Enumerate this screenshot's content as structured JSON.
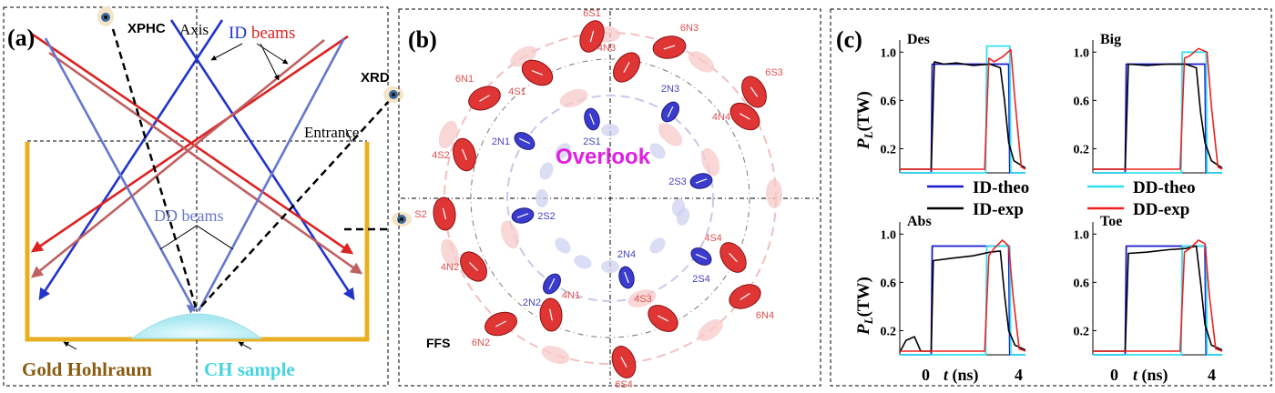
{
  "panel_a": {
    "label": "(a)",
    "xphc": "XPHC",
    "axis": "Axis",
    "id_prefix": "ID",
    "id_suffix": " beams",
    "xrd": "XRD",
    "entrance": "Entrance",
    "dd_beams": "DD beams",
    "gold": "Gold Hohlraum",
    "ch": "CH sample",
    "colors": {
      "id_blue": "#2233cc",
      "id_red": "#dd2222",
      "dd_blue": "#6677cc",
      "dd_red": "#c06060",
      "gold": "#e8b020",
      "ch": "#45d4e0",
      "gold_text": "#8a5a10"
    }
  },
  "panel_b": {
    "label": "(b)",
    "overlook": "Overlook",
    "ffs": "FFS",
    "beams": [
      {
        "id": "6S1",
        "color": "red",
        "label": "6S1"
      },
      {
        "id": "6N3",
        "color": "red",
        "label": "6N3"
      },
      {
        "id": "6S3",
        "color": "red",
        "label": "6S3"
      },
      {
        "id": "6N4",
        "color": "red",
        "label": "6N4"
      },
      {
        "id": "6S4",
        "color": "red",
        "label": "6S4"
      },
      {
        "id": "6N2",
        "color": "red",
        "label": "6N2"
      },
      {
        "id": "6S2",
        "color": "red",
        "label": "S2"
      },
      {
        "id": "6N1",
        "color": "red",
        "label": "6N1"
      },
      {
        "id": "4N3",
        "color": "red",
        "label": "4N3"
      },
      {
        "id": "4N4",
        "color": "red",
        "label": "4N4"
      },
      {
        "id": "4S4",
        "color": "red",
        "label": "4S4"
      },
      {
        "id": "4S3",
        "color": "red",
        "label": "4S3"
      },
      {
        "id": "4N1",
        "color": "red",
        "label": "4N1"
      },
      {
        "id": "4N2",
        "color": "red",
        "label": "4N2"
      },
      {
        "id": "4S2",
        "color": "red",
        "label": "4S2"
      },
      {
        "id": "4S1",
        "color": "red",
        "label": "4S1"
      },
      {
        "id": "2S1",
        "color": "blue",
        "label": "2S1"
      },
      {
        "id": "2N3",
        "color": "blue",
        "label": "2N3"
      },
      {
        "id": "2S3",
        "color": "blue",
        "label": "2S3"
      },
      {
        "id": "2S4",
        "color": "blue",
        "label": "2S4"
      },
      {
        "id": "2N4",
        "color": "blue",
        "label": "2N4"
      },
      {
        "id": "2N2",
        "color": "blue",
        "label": "2N2"
      },
      {
        "id": "2S2",
        "color": "blue",
        "label": "2S2"
      },
      {
        "id": "2N1",
        "color": "blue",
        "label": "2N1"
      }
    ],
    "colors": {
      "red": "#e03535",
      "blue": "#3b3bcc",
      "overlook": "#e020e0",
      "label_red": "#e05050",
      "label_blue": "#4545bb"
    }
  },
  "panel_c": {
    "label": "(c)",
    "ylabel_main": "P",
    "ylabel_sub": "L",
    "ylabel_unit": "(TW)",
    "xlabel_t": "t",
    "xlabel_unit": " (ns)",
    "xticks": [
      "0",
      "4"
    ],
    "yticks": [
      "0.2",
      "0.6",
      "1.0"
    ],
    "yticks_a": [
      "0.2",
      "0.6",
      "1.0"
    ],
    "yticks_b": [
      "0.2",
      "0.6",
      "1.0"
    ],
    "legend": {
      "id_theo": "ID-theo",
      "dd_theo": "DD-theo",
      "id_exp": "ID-exp",
      "dd_exp": "DD-exp"
    },
    "colors": {
      "id_theo": "#1a1acc",
      "dd_theo": "#33e0ee",
      "id_exp": "#000000",
      "dd_exp": "#ee2020"
    }
  },
  "chart_data": [
    {
      "type": "line",
      "title": "Des",
      "xlabel": "t (ns)",
      "ylabel": "PL(TW)",
      "ylim": [
        0,
        1.1
      ],
      "series": [
        {
          "name": "ID-theo",
          "x": [
            -1.5,
            0,
            0.05,
            3.7,
            3.75,
            4.5
          ],
          "values": [
            0,
            0,
            0.9,
            0.9,
            0,
            0
          ]
        },
        {
          "name": "DD-theo",
          "x": [
            -1.5,
            2.6,
            2.65,
            3.75,
            3.8,
            4.5
          ],
          "values": [
            0,
            0,
            1.05,
            1.05,
            0,
            0
          ]
        },
        {
          "name": "ID-exp",
          "x": [
            -1.5,
            0,
            0.15,
            0.6,
            1.2,
            2.0,
            2.8,
            3.3,
            3.5,
            3.7,
            3.95,
            4.5
          ],
          "values": [
            0.03,
            0.03,
            0.92,
            0.9,
            0.91,
            0.89,
            0.9,
            0.87,
            0.6,
            0.25,
            0.1,
            0.04
          ]
        },
        {
          "name": "DD-exp",
          "x": [
            -1.5,
            2.55,
            2.75,
            3.0,
            3.4,
            3.8,
            4.0,
            4.3,
            4.5
          ],
          "values": [
            0.03,
            0.03,
            0.95,
            0.92,
            0.96,
            1.02,
            0.6,
            0.05,
            0.03
          ]
        }
      ]
    },
    {
      "type": "line",
      "title": "Big",
      "xlabel": "t (ns)",
      "ylabel": "PL(TW)",
      "ylim": [
        0,
        1.1
      ],
      "series": [
        {
          "name": "ID-theo",
          "x": [
            -1.5,
            0,
            0.05,
            3.7,
            3.75,
            4.5
          ],
          "values": [
            0,
            0,
            0.9,
            0.9,
            0,
            0
          ]
        },
        {
          "name": "DD-theo",
          "x": [
            -1.5,
            2.6,
            2.65,
            3.75,
            3.8,
            4.5
          ],
          "values": [
            0,
            0,
            1.0,
            1.0,
            0,
            0
          ]
        },
        {
          "name": "ID-exp",
          "x": [
            -1.5,
            0,
            0.15,
            1.0,
            2.0,
            2.8,
            3.3,
            3.5,
            3.7,
            4.0,
            4.5
          ],
          "values": [
            0.03,
            0.03,
            0.9,
            0.89,
            0.9,
            0.9,
            0.87,
            0.5,
            0.25,
            0.1,
            0.04
          ]
        },
        {
          "name": "DD-exp",
          "x": [
            -1.5,
            2.55,
            2.75,
            3.0,
            3.4,
            3.8,
            4.0,
            4.3,
            4.5
          ],
          "values": [
            0.03,
            0.03,
            0.95,
            0.97,
            1.03,
            1.0,
            0.55,
            0.05,
            0.03
          ]
        }
      ]
    },
    {
      "type": "line",
      "title": "Abs",
      "xlabel": "t (ns)",
      "ylabel": "PL(TW)",
      "ylim": [
        0,
        1.1
      ],
      "series": [
        {
          "name": "ID-theo",
          "x": [
            -1.5,
            0,
            0.05,
            3.7,
            3.75,
            4.5
          ],
          "values": [
            0,
            0,
            0.9,
            0.9,
            0,
            0
          ]
        },
        {
          "name": "DD-theo",
          "x": [
            -1.5,
            2.6,
            2.65,
            3.75,
            3.8,
            4.5
          ],
          "values": [
            0,
            0,
            0.9,
            0.9,
            0,
            0
          ]
        },
        {
          "name": "ID-exp",
          "x": [
            -1.5,
            -1.2,
            -0.8,
            -0.5,
            0,
            0.1,
            1.0,
            2.0,
            2.8,
            3.3,
            3.5,
            3.7,
            4.0,
            4.5
          ],
          "values": [
            0.02,
            0.12,
            0.15,
            0.03,
            0.03,
            0.78,
            0.8,
            0.82,
            0.85,
            0.86,
            0.5,
            0.2,
            0.08,
            0.04
          ]
        },
        {
          "name": "DD-exp",
          "x": [
            -1.5,
            2.55,
            2.75,
            3.0,
            3.4,
            3.7,
            3.9,
            4.2,
            4.5
          ],
          "values": [
            0.03,
            0.03,
            0.82,
            0.88,
            0.95,
            0.9,
            0.5,
            0.05,
            0.03
          ]
        }
      ]
    },
    {
      "type": "line",
      "title": "Toe",
      "xlabel": "t (ns)",
      "ylabel": "PL(TW)",
      "ylim": [
        0,
        1.1
      ],
      "series": [
        {
          "name": "ID-theo",
          "x": [
            -1.5,
            0,
            0.05,
            3.7,
            3.75,
            4.5
          ],
          "values": [
            0,
            0,
            0.9,
            0.9,
            0,
            0
          ]
        },
        {
          "name": "DD-theo",
          "x": [
            -1.5,
            2.6,
            2.65,
            3.75,
            3.8,
            4.5
          ],
          "values": [
            0,
            0,
            0.9,
            0.9,
            0,
            0
          ]
        },
        {
          "name": "ID-exp",
          "x": [
            -1.5,
            0,
            0.15,
            1.0,
            2.0,
            2.8,
            3.3,
            3.5,
            3.7,
            4.0,
            4.5
          ],
          "values": [
            0.03,
            0.03,
            0.84,
            0.85,
            0.87,
            0.88,
            0.9,
            0.6,
            0.25,
            0.08,
            0.04
          ]
        },
        {
          "name": "DD-exp",
          "x": [
            -1.5,
            2.55,
            2.75,
            3.0,
            3.4,
            3.7,
            3.9,
            4.2,
            4.5
          ],
          "values": [
            0.03,
            0.03,
            0.85,
            0.88,
            0.95,
            0.92,
            0.5,
            0.05,
            0.03
          ]
        }
      ]
    }
  ]
}
